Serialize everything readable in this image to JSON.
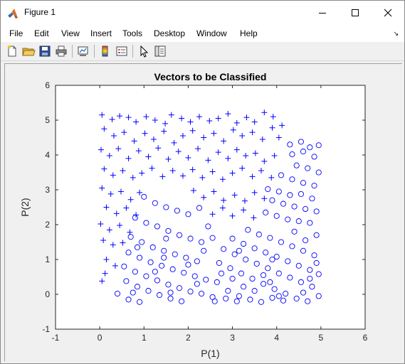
{
  "window": {
    "title": "Figure 1",
    "minimize_icon": "minimize-icon",
    "maximize_icon": "maximize-icon",
    "close_icon": "close-icon"
  },
  "menu": {
    "items": [
      "File",
      "Edit",
      "View",
      "Insert",
      "Tools",
      "Desktop",
      "Window",
      "Help"
    ]
  },
  "toolbar": {
    "icons": [
      "new-figure-icon",
      "open-file-icon",
      "save-icon",
      "print-icon",
      "link-plot-icon",
      "insert-colorbar-icon",
      "insert-legend-icon",
      "edit-plot-icon",
      "property-inspector-icon"
    ]
  },
  "colors": {
    "series": "#0000ff",
    "background": "#f0f0f0"
  },
  "chart_data": {
    "type": "scatter",
    "title": "Vectors to be Classified",
    "xlabel": "P(1)",
    "ylabel": "P(2)",
    "xlim": [
      -1,
      6
    ],
    "ylim": [
      -1,
      6
    ],
    "xticks": [
      "-1",
      "0",
      "1",
      "2",
      "3",
      "4",
      "5",
      "6"
    ],
    "yticks": [
      "-1",
      "0",
      "1",
      "2",
      "3",
      "4",
      "5",
      "6"
    ],
    "grid": false,
    "series": [
      {
        "marker": "plus",
        "color": "#0000ff",
        "points": [
          [
            0.05,
            5.15
          ],
          [
            0.28,
            5.02
          ],
          [
            0.45,
            5.12
          ],
          [
            0.65,
            5.08
          ],
          [
            0.82,
            4.95
          ],
          [
            1.05,
            5.1
          ],
          [
            1.25,
            5.0
          ],
          [
            1.48,
            4.9
          ],
          [
            1.62,
            5.15
          ],
          [
            1.85,
            5.05
          ],
          [
            2.05,
            4.95
          ],
          [
            2.25,
            5.1
          ],
          [
            2.48,
            4.98
          ],
          [
            2.68,
            5.05
          ],
          [
            2.9,
            5.18
          ],
          [
            3.1,
            4.92
          ],
          [
            3.32,
            5.08
          ],
          [
            3.5,
            4.95
          ],
          [
            3.72,
            5.22
          ],
          [
            3.92,
            5.1
          ],
          [
            4.12,
            4.85
          ],
          [
            0.1,
            4.75
          ],
          [
            0.32,
            4.55
          ],
          [
            0.55,
            4.65
          ],
          [
            0.78,
            4.4
          ],
          [
            1.02,
            4.62
          ],
          [
            1.22,
            4.45
          ],
          [
            1.45,
            4.68
          ],
          [
            1.68,
            4.35
          ],
          [
            1.88,
            4.55
          ],
          [
            2.1,
            4.7
          ],
          [
            2.35,
            4.5
          ],
          [
            2.58,
            4.62
          ],
          [
            2.8,
            4.4
          ],
          [
            3.02,
            4.72
          ],
          [
            3.22,
            4.55
          ],
          [
            3.45,
            4.65
          ],
          [
            3.68,
            4.45
          ],
          [
            3.9,
            4.78
          ],
          [
            4.05,
            4.5
          ],
          [
            0.03,
            4.15
          ],
          [
            0.22,
            3.98
          ],
          [
            0.42,
            4.18
          ],
          [
            0.65,
            3.9
          ],
          [
            0.88,
            4.12
          ],
          [
            1.1,
            3.95
          ],
          [
            1.32,
            4.2
          ],
          [
            1.55,
            3.88
          ],
          [
            1.78,
            4.1
          ],
          [
            2.0,
            3.92
          ],
          [
            2.22,
            4.18
          ],
          [
            2.45,
            3.85
          ],
          [
            2.68,
            4.08
          ],
          [
            2.9,
            3.9
          ],
          [
            3.1,
            4.15
          ],
          [
            3.3,
            3.98
          ],
          [
            3.52,
            4.05
          ],
          [
            3.72,
            3.82
          ],
          [
            3.95,
            3.98
          ],
          [
            0.1,
            3.6
          ],
          [
            0.3,
            3.42
          ],
          [
            0.52,
            3.55
          ],
          [
            0.75,
            3.35
          ],
          [
            0.95,
            3.48
          ],
          [
            1.18,
            3.62
          ],
          [
            1.42,
            3.38
          ],
          [
            1.65,
            3.55
          ],
          [
            1.88,
            3.4
          ],
          [
            2.1,
            3.58
          ],
          [
            2.32,
            3.35
          ],
          [
            2.55,
            3.52
          ],
          [
            2.78,
            3.3
          ],
          [
            3.0,
            3.48
          ],
          [
            3.22,
            3.62
          ],
          [
            3.45,
            3.38
          ],
          [
            3.65,
            3.55
          ],
          [
            3.88,
            3.35
          ],
          [
            0.05,
            3.05
          ],
          [
            0.25,
            2.88
          ],
          [
            0.48,
            2.95
          ],
          [
            0.7,
            2.72
          ],
          [
            0.9,
            2.92
          ],
          [
            2.12,
            2.98
          ],
          [
            2.35,
            2.78
          ],
          [
            2.58,
            2.95
          ],
          [
            2.8,
            2.7
          ],
          [
            3.05,
            2.85
          ],
          [
            3.28,
            2.68
          ],
          [
            3.5,
            2.92
          ],
          [
            3.72,
            2.75
          ],
          [
            0.15,
            2.5
          ],
          [
            0.38,
            2.32
          ],
          [
            0.6,
            2.48
          ],
          [
            0.82,
            2.28
          ],
          [
            2.55,
            2.3
          ],
          [
            2.78,
            2.48
          ],
          [
            3.0,
            2.25
          ],
          [
            3.25,
            2.42
          ],
          [
            3.48,
            2.2
          ],
          [
            0.02,
            2.02
          ],
          [
            0.22,
            1.85
          ],
          [
            0.45,
            1.98
          ],
          [
            0.68,
            1.78
          ],
          [
            0.08,
            1.55
          ],
          [
            0.3,
            1.42
          ],
          [
            0.52,
            1.48
          ],
          [
            0.15,
            1.0
          ],
          [
            0.35,
            0.82
          ],
          [
            0.12,
            0.6
          ],
          [
            0.05,
            0.38
          ]
        ]
      },
      {
        "marker": "circle",
        "color": "#0000ff",
        "points": [
          [
            4.3,
            4.3
          ],
          [
            4.55,
            4.38
          ],
          [
            4.75,
            4.22
          ],
          [
            4.95,
            4.28
          ],
          [
            4.35,
            4.02
          ],
          [
            4.6,
            4.1
          ],
          [
            4.85,
            3.95
          ],
          [
            4.45,
            3.7
          ],
          [
            4.7,
            3.62
          ],
          [
            4.95,
            3.5
          ],
          [
            4.1,
            3.42
          ],
          [
            4.35,
            3.3
          ],
          [
            4.6,
            3.2
          ],
          [
            4.85,
            3.12
          ],
          [
            3.8,
            3.02
          ],
          [
            4.05,
            2.95
          ],
          [
            4.3,
            2.85
          ],
          [
            4.55,
            2.88
          ],
          [
            4.8,
            2.75
          ],
          [
            3.9,
            2.7
          ],
          [
            4.15,
            2.6
          ],
          [
            4.4,
            2.52
          ],
          [
            4.65,
            2.45
          ],
          [
            4.9,
            2.38
          ],
          [
            3.75,
            2.35
          ],
          [
            4.0,
            2.25
          ],
          [
            4.25,
            2.15
          ],
          [
            4.5,
            2.1
          ],
          [
            4.75,
            2.05
          ],
          [
            1.0,
            2.8
          ],
          [
            1.25,
            2.62
          ],
          [
            1.5,
            2.5
          ],
          [
            1.75,
            2.4
          ],
          [
            2.0,
            2.3
          ],
          [
            2.25,
            2.48
          ],
          [
            0.8,
            2.2
          ],
          [
            1.05,
            2.05
          ],
          [
            1.3,
            1.95
          ],
          [
            1.55,
            1.82
          ],
          [
            1.8,
            1.7
          ],
          [
            2.05,
            1.6
          ],
          [
            2.3,
            1.5
          ],
          [
            2.55,
            1.62
          ],
          [
            0.7,
            1.65
          ],
          [
            0.95,
            1.5
          ],
          [
            1.2,
            1.35
          ],
          [
            1.45,
            1.25
          ],
          [
            1.7,
            1.15
          ],
          [
            1.95,
            1.05
          ],
          [
            2.2,
            0.95
          ],
          [
            0.65,
            1.2
          ],
          [
            0.9,
            1.05
          ],
          [
            1.15,
            0.92
          ],
          [
            1.4,
            0.82
          ],
          [
            1.65,
            0.72
          ],
          [
            1.9,
            0.62
          ],
          [
            2.15,
            0.52
          ],
          [
            2.4,
            0.42
          ],
          [
            2.65,
            0.35
          ],
          [
            0.55,
            0.8
          ],
          [
            0.8,
            0.65
          ],
          [
            1.05,
            0.52
          ],
          [
            1.3,
            0.4
          ],
          [
            1.55,
            0.28
          ],
          [
            1.8,
            0.18
          ],
          [
            2.05,
            0.08
          ],
          [
            2.3,
            0.02
          ],
          [
            2.55,
            -0.08
          ],
          [
            0.6,
            0.38
          ],
          [
            0.85,
            0.22
          ],
          [
            1.1,
            0.1
          ],
          [
            1.35,
            -0.02
          ],
          [
            1.6,
            -0.12
          ],
          [
            1.85,
            -0.2
          ],
          [
            0.4,
            0.02
          ],
          [
            0.65,
            -0.15
          ],
          [
            0.9,
            -0.22
          ],
          [
            2.7,
            0.9
          ],
          [
            2.95,
            0.75
          ],
          [
            3.2,
            0.6
          ],
          [
            3.45,
            0.45
          ],
          [
            3.7,
            0.3
          ],
          [
            3.95,
            0.15
          ],
          [
            4.2,
            0.02
          ],
          [
            4.45,
            -0.12
          ],
          [
            4.7,
            -0.2
          ],
          [
            4.95,
            -0.05
          ],
          [
            2.8,
            1.3
          ],
          [
            3.05,
            1.15
          ],
          [
            3.3,
            1.0
          ],
          [
            3.55,
            0.88
          ],
          [
            3.8,
            0.75
          ],
          [
            4.05,
            0.6
          ],
          [
            4.3,
            0.48
          ],
          [
            4.55,
            0.35
          ],
          [
            4.8,
            0.22
          ],
          [
            3.0,
            1.6
          ],
          [
            3.25,
            1.45
          ],
          [
            3.5,
            1.32
          ],
          [
            3.75,
            1.2
          ],
          [
            4.0,
            1.08
          ],
          [
            4.25,
            0.95
          ],
          [
            4.5,
            0.82
          ],
          [
            4.75,
            0.7
          ],
          [
            4.95,
            0.58
          ],
          [
            3.35,
            1.85
          ],
          [
            3.6,
            1.72
          ],
          [
            3.85,
            1.62
          ],
          [
            4.1,
            1.5
          ],
          [
            4.35,
            1.38
          ],
          [
            4.6,
            1.25
          ],
          [
            4.85,
            1.12
          ],
          [
            2.9,
            0.1
          ],
          [
            3.15,
            -0.05
          ],
          [
            3.4,
            -0.15
          ],
          [
            3.65,
            -0.22
          ],
          [
            3.9,
            -0.1
          ],
          [
            4.15,
            -0.18
          ],
          [
            2.6,
            -0.2
          ],
          [
            2.85,
            -0.12
          ],
          [
            3.1,
            -0.2
          ],
          [
            1.5,
            1.6
          ],
          [
            2.45,
            1.95
          ],
          [
            1.6,
            0.05
          ],
          [
            2.2,
            0.3
          ],
          [
            3.0,
            0.45
          ],
          [
            3.7,
            0.55
          ],
          [
            4.4,
            1.8
          ],
          [
            4.9,
            0.9
          ],
          [
            4.6,
            0.05
          ],
          [
            3.85,
            0.35
          ],
          [
            3.25,
            0.22
          ],
          [
            0.75,
            0.05
          ],
          [
            1.25,
            0.65
          ],
          [
            2.0,
            0.85
          ],
          [
            2.75,
            0.6
          ],
          [
            3.5,
            0.1
          ],
          [
            4.05,
            -0.05
          ],
          [
            4.75,
            0.45
          ],
          [
            0.85,
            1.35
          ],
          [
            1.45,
            1.05
          ],
          [
            2.35,
            1.25
          ],
          [
            3.15,
            1.25
          ],
          [
            3.9,
            1.0
          ],
          [
            4.65,
            1.55
          ],
          [
            4.9,
            1.7
          ]
        ]
      }
    ]
  }
}
